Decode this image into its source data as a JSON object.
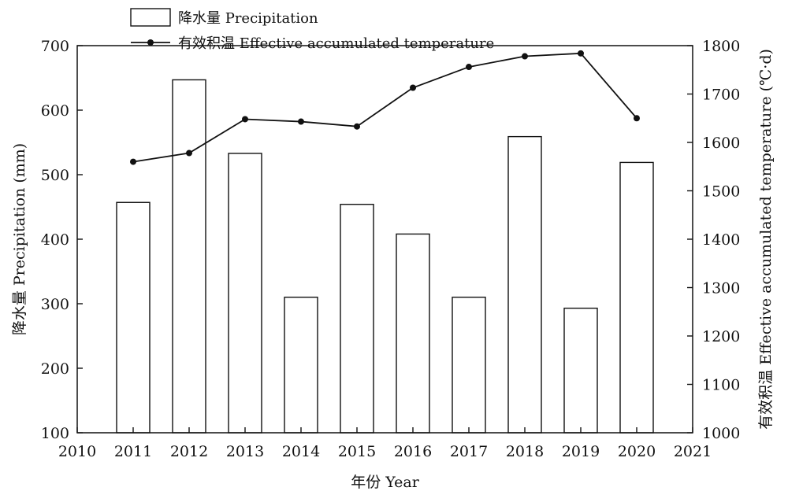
{
  "chart_data": {
    "type": "bar",
    "categories": [
      "2011",
      "2012",
      "2013",
      "2014",
      "2015",
      "2016",
      "2017",
      "2018",
      "2019",
      "2020"
    ],
    "x_ticks": [
      "2010",
      "2011",
      "2012",
      "2013",
      "2014",
      "2015",
      "2016",
      "2017",
      "2018",
      "2019",
      "2020",
      "2021"
    ],
    "xlim": [
      2010,
      2021
    ],
    "xlabel": "年份 Year",
    "y_left": {
      "label": "降水量 Precipitation (mm)",
      "lim": [
        100,
        700
      ],
      "ticks": [
        "100",
        "200",
        "300",
        "400",
        "500",
        "600",
        "700"
      ]
    },
    "y_right": {
      "label": "有效积温 Effective accumulated temperature (℃·d)",
      "lim": [
        1000,
        1800
      ],
      "ticks": [
        "1000",
        "1100",
        "1200",
        "1300",
        "1400",
        "1500",
        "1600",
        "1700",
        "1800"
      ]
    },
    "series": [
      {
        "name": "降水量 Precipitation",
        "kind": "bar",
        "axis": "left",
        "x": [
          2011,
          2012,
          2013,
          2014,
          2015,
          2016,
          2017,
          2018,
          2019,
          2020
        ],
        "values": [
          457,
          647,
          533,
          310,
          454,
          408,
          310,
          559,
          293,
          519
        ]
      },
      {
        "name": "有效积温 Effective accumulated temperature",
        "kind": "line",
        "axis": "right",
        "x": [
          2011,
          2012,
          2013,
          2014,
          2015,
          2016,
          2017,
          2018,
          2019,
          2020
        ],
        "values": [
          1560,
          1578,
          1648,
          1643,
          1633,
          1713,
          1756,
          1778,
          1784,
          1650
        ]
      }
    ],
    "legend_position": "top-left",
    "grid": false
  }
}
